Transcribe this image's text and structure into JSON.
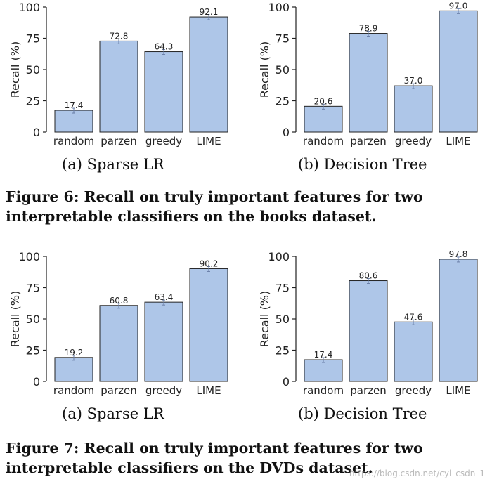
{
  "chart_data": [
    {
      "type": "bar",
      "subtitle": "(a) Sparse LR",
      "ylabel": "Recall (%)",
      "categories": [
        "random",
        "parzen",
        "greedy",
        "LIME"
      ],
      "values": [
        17.4,
        72.8,
        64.3,
        92.1
      ],
      "data_labels": [
        "17.4",
        "72.8",
        "64.3",
        "92.1"
      ],
      "ylim": [
        0,
        100
      ],
      "yticks": [
        "0",
        "25",
        "50",
        "75",
        "100"
      ],
      "grid": false,
      "bar_color": "#aec6e8"
    },
    {
      "type": "bar",
      "subtitle": "(b) Decision Tree",
      "ylabel": "Recall (%)",
      "categories": [
        "random",
        "parzen",
        "greedy",
        "LIME"
      ],
      "values": [
        20.6,
        78.9,
        37.0,
        97.0
      ],
      "data_labels": [
        "20.6",
        "78.9",
        "37.0",
        "97.0"
      ],
      "ylim": [
        0,
        100
      ],
      "yticks": [
        "0",
        "25",
        "50",
        "75",
        "100"
      ],
      "grid": false,
      "bar_color": "#aec6e8"
    },
    {
      "type": "bar",
      "subtitle": "(a) Sparse LR",
      "ylabel": "Recall (%)",
      "categories": [
        "random",
        "parzen",
        "greedy",
        "LIME"
      ],
      "values": [
        19.2,
        60.8,
        63.4,
        90.2
      ],
      "data_labels": [
        "19.2",
        "60.8",
        "63.4",
        "90.2"
      ],
      "ylim": [
        0,
        100
      ],
      "yticks": [
        "0",
        "25",
        "50",
        "75",
        "100"
      ],
      "grid": false,
      "bar_color": "#aec6e8"
    },
    {
      "type": "bar",
      "subtitle": "(b) Decision Tree",
      "ylabel": "Recall (%)",
      "categories": [
        "random",
        "parzen",
        "greedy",
        "LIME"
      ],
      "values": [
        17.4,
        80.6,
        47.6,
        97.8
      ],
      "data_labels": [
        "17.4",
        "80.6",
        "47.6",
        "97.8"
      ],
      "ylim": [
        0,
        100
      ],
      "yticks": [
        "0",
        "25",
        "50",
        "75",
        "100"
      ],
      "grid": false,
      "bar_color": "#aec6e8"
    }
  ],
  "figure6": {
    "line1": "Figure 6: Recall on truly important features for two",
    "line2": "interpretable classifiers on the books dataset."
  },
  "figure7": {
    "line1": "Figure 7: Recall on truly important features for two",
    "line2": "interpretable classifiers on the DVDs dataset."
  },
  "watermark": "https://blog.csdn.net/cyl_csdn_1"
}
